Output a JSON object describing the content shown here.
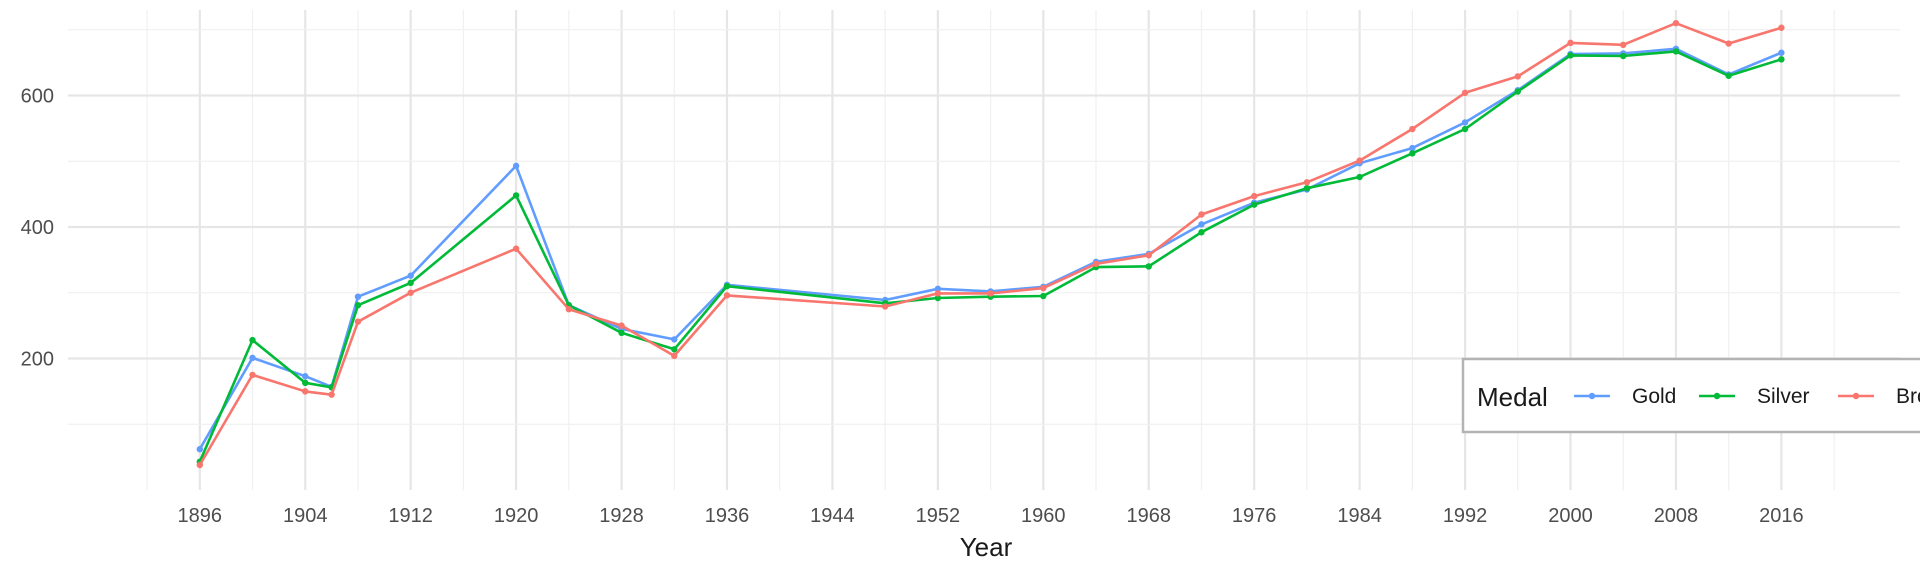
{
  "chart_data": {
    "type": "line",
    "xlabel": "Year",
    "ylabel": "",
    "xlim": [
      1886,
      2025
    ],
    "ylim": [
      0,
      730
    ],
    "x_ticks": [
      1896,
      1904,
      1912,
      1920,
      1928,
      1936,
      1944,
      1952,
      1960,
      1968,
      1976,
      1984,
      1992,
      2000,
      2008,
      2016
    ],
    "y_ticks": [
      200,
      400,
      600
    ],
    "grid": true,
    "legend": {
      "title": "Medal",
      "position": "bottom-right"
    },
    "x": [
      1896,
      1900,
      1904,
      1906,
      1908,
      1912,
      1920,
      1924,
      1928,
      1932,
      1936,
      1948,
      1952,
      1956,
      1960,
      1964,
      1968,
      1972,
      1976,
      1980,
      1984,
      1988,
      1992,
      1996,
      2000,
      2004,
      2008,
      2012,
      2016
    ],
    "series": [
      {
        "name": "Gold",
        "color": "#619CFF",
        "values": [
          62,
          201,
          173,
          157,
          294,
          326,
          493,
          281,
          245,
          229,
          312,
          289,
          306,
          302,
          309,
          347,
          359,
          404,
          437,
          457,
          497,
          520,
          559,
          608,
          663,
          664,
          671,
          632,
          665
        ]
      },
      {
        "name": "Silver",
        "color": "#00BA38",
        "values": [
          43,
          228,
          163,
          156,
          281,
          315,
          448,
          281,
          239,
          214,
          310,
          284,
          292,
          294,
          295,
          339,
          340,
          392,
          434,
          459,
          476,
          512,
          549,
          606,
          661,
          660,
          667,
          630,
          655
        ]
      },
      {
        "name": "Bronze",
        "color": "#F8766D",
        "values": [
          38,
          175,
          150,
          145,
          256,
          300,
          367,
          275,
          250,
          204,
          296,
          279,
          299,
          299,
          307,
          344,
          357,
          419,
          447,
          468,
          501,
          549,
          604,
          629,
          680,
          677,
          710,
          679,
          703
        ]
      }
    ]
  }
}
